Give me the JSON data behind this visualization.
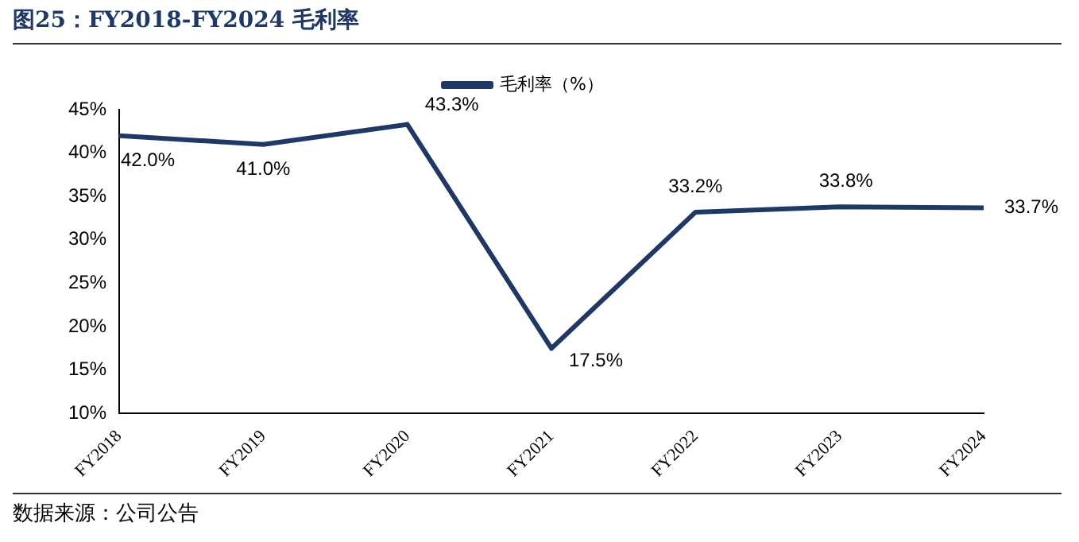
{
  "chart_data": {
    "type": "line",
    "title": "图25：FY2018-FY2024 毛利率",
    "categories": [
      "FY2018",
      "FY2019",
      "FY2020",
      "FY2021",
      "FY2022",
      "FY2023",
      "FY2024"
    ],
    "series": [
      {
        "name": "毛利率（%）",
        "color": "#203864",
        "values": [
          42.0,
          41.0,
          43.3,
          17.5,
          33.2,
          33.8,
          33.7
        ],
        "value_labels": [
          "42.0%",
          "41.0%",
          "43.3%",
          "17.5%",
          "33.2%",
          "33.8%",
          "33.7%"
        ]
      }
    ],
    "ylim": [
      10,
      45
    ],
    "yticks": [
      {
        "value": 10,
        "label": "10%"
      },
      {
        "value": 15,
        "label": "15%"
      },
      {
        "value": 20,
        "label": "20%"
      },
      {
        "value": 25,
        "label": "25%"
      },
      {
        "value": 30,
        "label": "30%"
      },
      {
        "value": 35,
        "label": "35%"
      },
      {
        "value": 40,
        "label": "40%"
      },
      {
        "value": 45,
        "label": "45%"
      }
    ],
    "grid": false,
    "legend": "top",
    "marker": "none",
    "line_style": "solid",
    "annotations": [
      "数据来源：公司公告"
    ]
  }
}
